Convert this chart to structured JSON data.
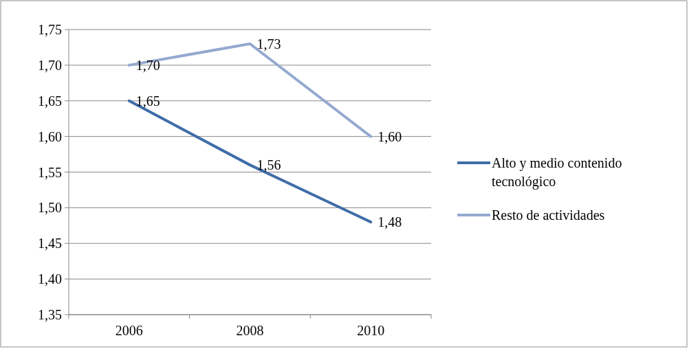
{
  "chart_data": {
    "type": "line",
    "categories": [
      "2006",
      "2008",
      "2010"
    ],
    "series": [
      {
        "name": "Alto y medio contenido tecnológico",
        "color": "#3f6da8",
        "values": [
          1.65,
          1.56,
          1.48
        ],
        "value_labels": [
          "1,65",
          "1,56",
          "1,48"
        ]
      },
      {
        "name": "Resto de actividades",
        "color": "#94a9d0",
        "values": [
          1.7,
          1.73,
          1.6
        ],
        "value_labels": [
          "1,70",
          "1,73",
          "1,60"
        ]
      }
    ],
    "ylim": [
      1.35,
      1.75
    ],
    "yticks": [
      {
        "value": 1.35,
        "label": "1,35"
      },
      {
        "value": 1.4,
        "label": "1,40"
      },
      {
        "value": 1.45,
        "label": "1,45"
      },
      {
        "value": 1.5,
        "label": "1,50"
      },
      {
        "value": 1.55,
        "label": "1,55"
      },
      {
        "value": 1.6,
        "label": "1,60"
      },
      {
        "value": 1.65,
        "label": "1,65"
      },
      {
        "value": 1.7,
        "label": "1,70"
      },
      {
        "value": 1.75,
        "label": "1,75"
      }
    ],
    "grid": "y",
    "legend": "right",
    "marker": "none",
    "line_style": "solid"
  }
}
